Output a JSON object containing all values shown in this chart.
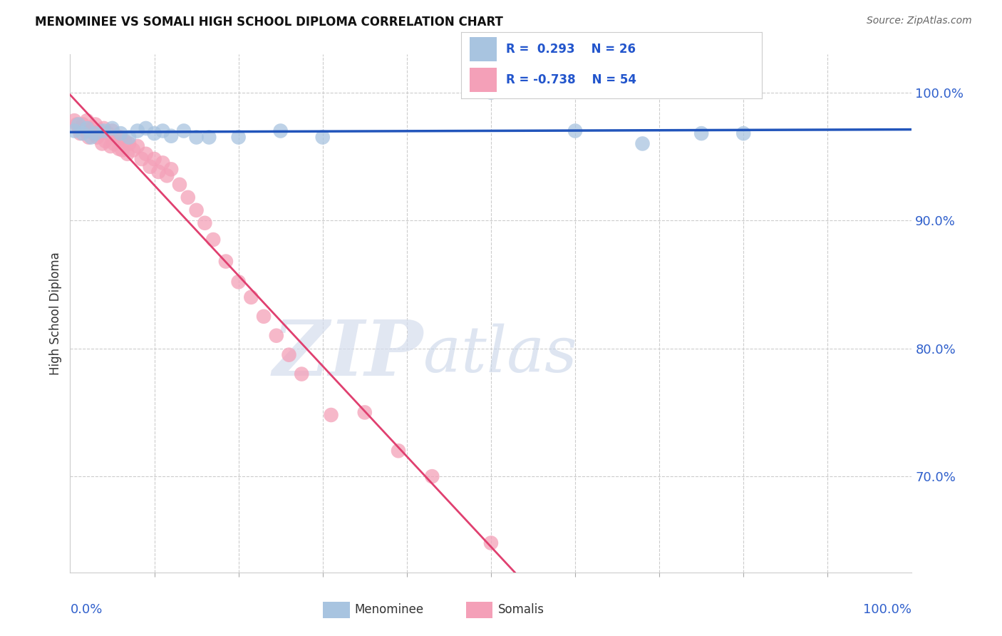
{
  "title": "MENOMINEE VS SOMALI HIGH SCHOOL DIPLOMA CORRELATION CHART",
  "source": "Source: ZipAtlas.com",
  "ylabel": "High School Diploma",
  "ytick_labels": [
    "70.0%",
    "80.0%",
    "90.0%",
    "100.0%"
  ],
  "ytick_values": [
    0.7,
    0.8,
    0.9,
    1.0
  ],
  "xlim": [
    0.0,
    1.0
  ],
  "ylim": [
    0.625,
    1.03
  ],
  "R_menominee": 0.293,
  "N_menominee": 26,
  "R_somali": -0.738,
  "N_somali": 54,
  "menominee_color": "#a8c4e0",
  "somali_color": "#f4a0b8",
  "trend_blue_color": "#2255bb",
  "trend_pink_color": "#e04070",
  "watermark_zip": "ZIP",
  "watermark_atlas": "atlas",
  "watermark_color_zip": "#d0d8e8",
  "watermark_color_atlas": "#c0cce0",
  "menominee_x": [
    0.005,
    0.01,
    0.015,
    0.02,
    0.025,
    0.03,
    0.04,
    0.05,
    0.06,
    0.07,
    0.08,
    0.09,
    0.1,
    0.11,
    0.12,
    0.135,
    0.15,
    0.165,
    0.2,
    0.25,
    0.3,
    0.5,
    0.6,
    0.68,
    0.75,
    0.8
  ],
  "menominee_y": [
    0.97,
    0.975,
    0.968,
    0.972,
    0.965,
    0.968,
    0.97,
    0.972,
    0.968,
    0.965,
    0.97,
    0.972,
    0.968,
    0.97,
    0.966,
    0.97,
    0.965,
    0.965,
    0.965,
    0.97,
    0.965,
    1.0,
    0.97,
    0.96,
    0.968,
    0.968
  ],
  "somali_x": [
    0.005,
    0.008,
    0.01,
    0.012,
    0.015,
    0.018,
    0.02,
    0.022,
    0.025,
    0.028,
    0.03,
    0.032,
    0.035,
    0.038,
    0.04,
    0.042,
    0.045,
    0.048,
    0.05,
    0.052,
    0.055,
    0.058,
    0.06,
    0.062,
    0.065,
    0.068,
    0.07,
    0.075,
    0.08,
    0.085,
    0.09,
    0.095,
    0.1,
    0.105,
    0.11,
    0.115,
    0.12,
    0.13,
    0.14,
    0.15,
    0.16,
    0.17,
    0.185,
    0.2,
    0.215,
    0.23,
    0.245,
    0.26,
    0.275,
    0.31,
    0.35,
    0.39,
    0.43,
    0.5
  ],
  "somali_y": [
    0.978,
    0.975,
    0.972,
    0.968,
    0.975,
    0.97,
    0.978,
    0.965,
    0.972,
    0.968,
    0.975,
    0.965,
    0.97,
    0.96,
    0.972,
    0.962,
    0.968,
    0.958,
    0.97,
    0.96,
    0.966,
    0.956,
    0.965,
    0.955,
    0.962,
    0.952,
    0.96,
    0.955,
    0.958,
    0.948,
    0.952,
    0.942,
    0.948,
    0.938,
    0.945,
    0.935,
    0.94,
    0.928,
    0.918,
    0.908,
    0.898,
    0.885,
    0.868,
    0.852,
    0.84,
    0.825,
    0.81,
    0.795,
    0.78,
    0.748,
    0.75,
    0.72,
    0.7,
    0.648
  ]
}
